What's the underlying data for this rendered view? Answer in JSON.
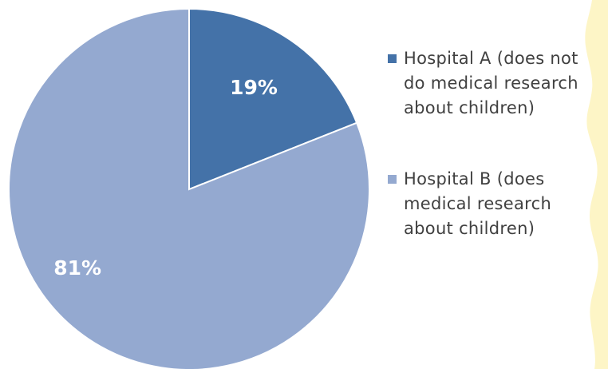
{
  "chart_data": {
    "type": "pie",
    "categories": [
      "Hospital A (does not do medical research about children)",
      "Hospital B (does medical research about children)"
    ],
    "values": [
      19,
      81
    ],
    "value_labels": [
      "19%",
      "81%"
    ],
    "colors": [
      "#4472a8",
      "#94a9d0"
    ],
    "title": "",
    "legend_position": "right"
  },
  "theme": {
    "background": "#ffffff",
    "accent_decoration": "#fdf5c6",
    "slice_border": "#ffffff",
    "legend_text": "#404040",
    "label_text": "#ffffff"
  }
}
